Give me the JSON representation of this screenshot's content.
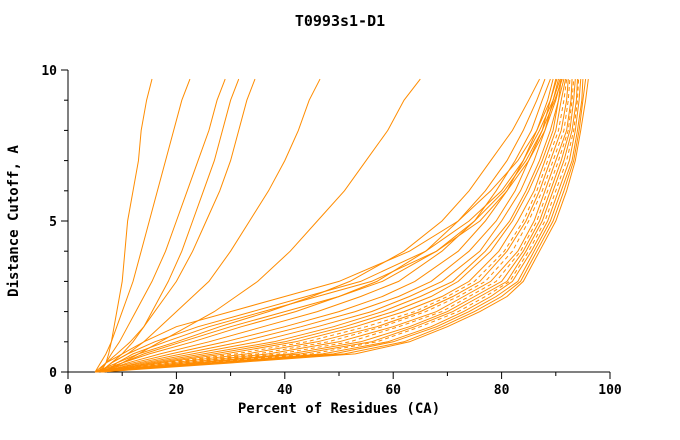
{
  "chart_data": {
    "type": "line",
    "title": "T0993s1-D1",
    "xlabel": "Percent of Residues (CA)",
    "ylabel": "Distance Cutoff, A",
    "xlim": [
      0,
      100
    ],
    "ylim": [
      0,
      10
    ],
    "x_ticks": [
      0,
      20,
      40,
      60,
      80,
      100
    ],
    "x_minor_ticks": [
      10,
      30,
      50,
      70,
      90
    ],
    "y_ticks": [
      0,
      5,
      10
    ],
    "y_minor_ticks": [
      1,
      2,
      3,
      4,
      6,
      7,
      8,
      9
    ],
    "grid": "off",
    "legend": "none",
    "line_color": "#ff8c00",
    "y_grid": [
      0,
      0.3,
      0.6,
      1,
      1.5,
      2,
      2.5,
      3,
      4,
      5,
      6,
      7,
      8,
      9,
      9.7
    ],
    "series": [
      {
        "x": [
          6,
          7,
          7.5,
          8,
          8.5,
          9,
          9.5,
          10,
          10.5,
          11,
          12,
          13,
          13.5,
          14.5,
          15.5
        ]
      },
      {
        "x": [
          5,
          6,
          7,
          8,
          9,
          10,
          11,
          12,
          13.5,
          15,
          16.5,
          18,
          19.5,
          21,
          22.5
        ]
      },
      {
        "x": [
          6,
          7,
          8,
          9.5,
          11,
          12.5,
          14,
          15.5,
          18,
          20,
          22,
          24,
          26,
          27.5,
          29
        ]
      },
      {
        "x": [
          6,
          8,
          10,
          12,
          14,
          15.5,
          17,
          18.5,
          21,
          23,
          25,
          27,
          28.5,
          30,
          31.5
        ]
      },
      {
        "x": [
          5.5,
          7,
          9,
          11.5,
          14,
          16,
          18,
          20,
          23,
          25.5,
          28,
          30,
          31.5,
          33,
          34.5
        ]
      },
      {
        "x": [
          6,
          8,
          11,
          14,
          17,
          20,
          23,
          26,
          30,
          33.5,
          37,
          40,
          42.5,
          44.5,
          46.5
        ]
      },
      {
        "x": [
          7,
          10,
          13,
          17,
          22,
          27,
          31,
          35,
          41,
          46,
          51,
          55,
          59,
          62,
          65
        ]
      },
      {
        "x": [
          5,
          9,
          13,
          20,
          28,
          37,
          45,
          52,
          62,
          69,
          74,
          78,
          82,
          85,
          87
        ]
      },
      {
        "x": [
          5,
          10,
          15,
          23,
          32,
          42,
          50,
          57,
          66,
          72,
          77,
          81,
          84,
          86.5,
          88
        ]
      },
      {
        "x": [
          6,
          11,
          17,
          26,
          36,
          46,
          54,
          61,
          69,
          75,
          79,
          82.5,
          85.5,
          87.5,
          89
        ]
      },
      {
        "x": [
          5,
          12,
          19,
          29,
          40,
          50,
          58,
          64,
          72,
          77,
          81,
          84,
          86.5,
          88.5,
          89.5
        ]
      },
      {
        "x": [
          6,
          13,
          21,
          32,
          43,
          53,
          61,
          67,
          74,
          79,
          82.5,
          85,
          87.5,
          89,
          90
        ]
      },
      {
        "x": [
          5,
          14,
          23,
          35,
          46,
          56,
          63,
          69,
          76,
          80,
          83.5,
          86,
          88,
          89.5,
          90.5
        ]
      },
      {
        "x": [
          6,
          15,
          25,
          38,
          49,
          58,
          65,
          71,
          77,
          81.5,
          84.5,
          87,
          89,
          90.5,
          91
        ]
      },
      {
        "x": [
          5,
          16,
          27,
          40,
          51,
          60,
          67,
          72,
          78,
          82,
          85,
          87.5,
          89.5,
          90.5,
          91.5
        ]
      },
      {
        "x": [
          6,
          17,
          29,
          42,
          53,
          62,
          69,
          74,
          79.5,
          83,
          86,
          88,
          90,
          91,
          91.8
        ]
      },
      {
        "x": [
          5,
          18,
          31,
          44,
          55,
          64,
          70,
          75,
          80.5,
          84,
          86.5,
          88.5,
          90.5,
          91.5,
          92
        ],
        "dash": true
      },
      {
        "x": [
          6,
          19,
          33,
          46,
          57,
          65,
          71,
          76,
          81,
          84.5,
          87,
          89,
          91,
          92,
          92.3
        ]
      },
      {
        "x": [
          5,
          20,
          35,
          48,
          58,
          66,
          72,
          77,
          82,
          85,
          87.5,
          89.5,
          91.5,
          92.3,
          92.6
        ],
        "dash": true
      },
      {
        "x": [
          6,
          21,
          37,
          50,
          60,
          68,
          73,
          78,
          83,
          86,
          88,
          90,
          92,
          92.8,
          93
        ]
      },
      {
        "x": [
          5,
          22,
          39,
          52,
          61,
          69,
          74,
          79,
          83.5,
          86.5,
          88.5,
          90.5,
          92.3,
          93,
          93.3
        ],
        "dash": true
      },
      {
        "x": [
          6,
          23,
          41,
          54,
          63,
          70,
          75,
          80,
          84,
          87,
          89,
          91,
          92.6,
          93.3,
          93.6
        ]
      },
      {
        "x": [
          5,
          24,
          43,
          56,
          64,
          71,
          76,
          81,
          84.5,
          87.5,
          89.5,
          91.5,
          93,
          93.8,
          94
        ]
      },
      {
        "x": [
          6,
          25,
          45,
          57,
          65,
          72,
          77,
          81.5,
          85,
          88,
          90,
          92,
          93.3,
          94,
          94.2
        ],
        "dash": true
      },
      {
        "x": [
          5,
          26,
          47,
          59,
          67,
          73,
          78,
          82,
          85.5,
          88.5,
          90.5,
          92.5,
          93.6,
          94.3,
          94.6
        ]
      },
      {
        "x": [
          6,
          27,
          49,
          60,
          68,
          74,
          79,
          83,
          86,
          89,
          91,
          93,
          94,
          94.8,
          95
        ]
      },
      {
        "x": [
          5,
          28,
          51,
          62,
          69,
          75,
          80,
          83.5,
          86.5,
          89.5,
          91.5,
          93.3,
          94.3,
          95,
          95.5
        ]
      },
      {
        "x": [
          6,
          30,
          53,
          63,
          70,
          76,
          81,
          84,
          87,
          90,
          92,
          93.6,
          94.6,
          95.5,
          96
        ]
      },
      {
        "x": [
          7,
          9,
          12,
          18,
          26,
          36,
          46,
          56,
          68,
          76,
          81,
          85,
          88,
          90,
          91
        ]
      },
      {
        "x": [
          6,
          8,
          11,
          16,
          24,
          34,
          44,
          54,
          66,
          74,
          80,
          84,
          87,
          89.5,
          90.8
        ]
      },
      {
        "x": [
          5,
          7,
          10,
          14,
          20,
          30,
          40,
          50,
          63,
          72,
          78,
          83,
          86.5,
          89,
          90.2
        ]
      },
      {
        "x": [
          6,
          10,
          14,
          21,
          30,
          40,
          50,
          58,
          68,
          75,
          80.5,
          84.5,
          87.5,
          89.8,
          91.2
        ]
      }
    ]
  }
}
